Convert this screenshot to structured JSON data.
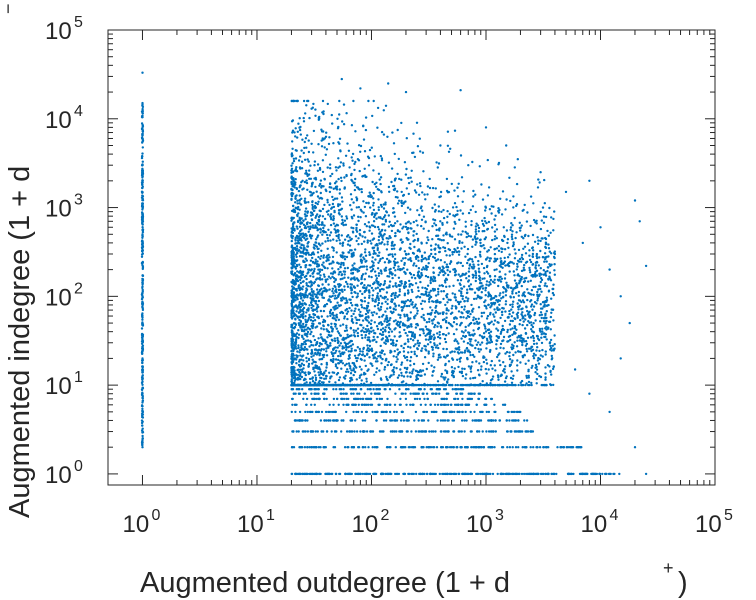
{
  "chart_data": {
    "type": "scatter",
    "title": "",
    "xlabel": "Augmented outdegree (1 + d",
    "xlabel_sup": "+",
    "xlabel_close": ")",
    "ylabel": "Augmented indegree (1 + d",
    "ylabel_sup": "−",
    "xscale": "log",
    "yscale": "log",
    "xlim": [
      0.5,
      100000
    ],
    "ylim": [
      0.75,
      100000
    ],
    "grid": false,
    "legend": "none",
    "marker_color": "#0072BD",
    "x_ticks": [
      {
        "base": "10",
        "exp": "0",
        "value": 1
      },
      {
        "base": "10",
        "exp": "1",
        "value": 10
      },
      {
        "base": "10",
        "exp": "2",
        "value": 100
      },
      {
        "base": "10",
        "exp": "3",
        "value": 1000
      },
      {
        "base": "10",
        "exp": "4",
        "value": 10000
      },
      {
        "base": "10",
        "exp": "5",
        "value": 100000
      }
    ],
    "y_ticks": [
      {
        "base": "10",
        "exp": "0",
        "value": 1
      },
      {
        "base": "10",
        "exp": "1",
        "value": 10
      },
      {
        "base": "10",
        "exp": "2",
        "value": 100
      },
      {
        "base": "10",
        "exp": "3",
        "value": 1000
      },
      {
        "base": "10",
        "exp": "4",
        "value": 10000
      },
      {
        "base": "10",
        "exp": "5",
        "value": 100000
      }
    ],
    "series": [
      {
        "values": [
          {
            "x": 1,
            "y": 2
          },
          {
            "x": 1,
            "y": 3
          },
          {
            "x": 1,
            "y": 5
          },
          {
            "x": 1,
            "y": 8
          },
          {
            "x": 1,
            "y": 12
          },
          {
            "x": 1,
            "y": 20
          },
          {
            "x": 1,
            "y": 50
          },
          {
            "x": 1,
            "y": 150
          },
          {
            "x": 1,
            "y": 500
          },
          {
            "x": 1,
            "y": 2000
          },
          {
            "x": 1,
            "y": 8000
          },
          {
            "x": 1,
            "y": 15000
          },
          {
            "x": 1,
            "y": 33000
          },
          {
            "x": 55,
            "y": 28000
          },
          {
            "x": 80,
            "y": 22000
          },
          {
            "x": 140,
            "y": 25000
          },
          {
            "x": 200,
            "y": 20000
          },
          {
            "x": 600,
            "y": 21000
          },
          {
            "x": 30,
            "y": 13000
          },
          {
            "x": 45,
            "y": 11000
          },
          {
            "x": 1000,
            "y": 8000
          },
          {
            "x": 1500,
            "y": 5000
          },
          {
            "x": 3000,
            "y": 2500
          },
          {
            "x": 5000,
            "y": 1500
          },
          {
            "x": 8000,
            "y": 2000
          },
          {
            "x": 10000,
            "y": 600
          },
          {
            "x": 12000,
            "y": 200
          },
          {
            "x": 15000,
            "y": 100
          },
          {
            "x": 20000,
            "y": 1200
          },
          {
            "x": 22000,
            "y": 700
          },
          {
            "x": 25000,
            "y": 220
          },
          {
            "x": 18000,
            "y": 50
          },
          {
            "x": 15000,
            "y": 20
          },
          {
            "x": 12000,
            "y": 5
          },
          {
            "x": 20000,
            "y": 2
          },
          {
            "x": 25000,
            "y": 1
          },
          {
            "x": 6000,
            "y": 15
          },
          {
            "x": 8000,
            "y": 8
          },
          {
            "x": 3000,
            "y": 40
          },
          {
            "x": 2000,
            "y": 150
          },
          {
            "x": 4000,
            "y": 300
          },
          {
            "x": 7000,
            "y": 400
          },
          {
            "x": 700,
            "y": 3000
          },
          {
            "x": 400,
            "y": 5000
          },
          {
            "x": 250,
            "y": 9000
          }
        ]
      }
    ]
  }
}
